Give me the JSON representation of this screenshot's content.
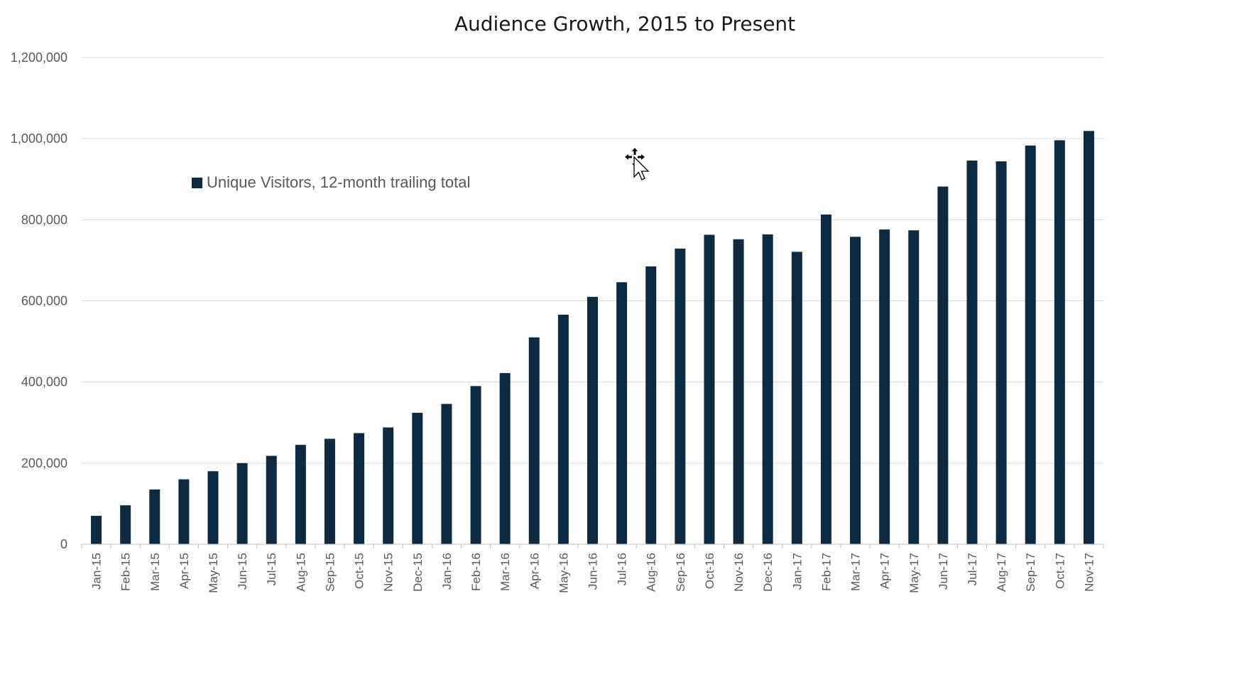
{
  "chart_data": {
    "type": "bar",
    "title": "Audience Growth, 2015 to Present",
    "xlabel": "",
    "ylabel": "",
    "ylim": [
      0,
      1200000
    ],
    "yticks": [
      0,
      200000,
      400000,
      600000,
      800000,
      1000000,
      1200000
    ],
    "ytick_labels": [
      "0",
      "200,000",
      "400,000",
      "600,000",
      "800,000",
      "1,000,000",
      "1,200,000"
    ],
    "grid": true,
    "legend_position": "upper-left",
    "categories": [
      "Jan-15",
      "Feb-15",
      "Mar-15",
      "Apr-15",
      "May-15",
      "Jun-15",
      "Jul-15",
      "Aug-15",
      "Sep-15",
      "Oct-15",
      "Nov-15",
      "Dec-15",
      "Jan-16",
      "Feb-16",
      "Mar-16",
      "Apr-16",
      "May-16",
      "Jun-16",
      "Jul-16",
      "Aug-16",
      "Sep-16",
      "Oct-16",
      "Nov-16",
      "Dec-16",
      "Jan-17",
      "Feb-17",
      "Mar-17",
      "Apr-17",
      "May-17",
      "Jun-17",
      "Jul-17",
      "Aug-17",
      "Sep-17",
      "Oct-17",
      "Nov-17"
    ],
    "series": [
      {
        "name": "Unique Visitors, 12-month trailing total",
        "color": "#0d2a40",
        "values": [
          70000,
          96000,
          135000,
          160000,
          180000,
          200000,
          218000,
          245000,
          260000,
          274000,
          288000,
          324000,
          346000,
          390000,
          422000,
          510000,
          566000,
          610000,
          646000,
          685000,
          729000,
          763000,
          752000,
          764000,
          721000,
          813000,
          758000,
          776000,
          774000,
          882000,
          946000,
          944000,
          983000,
          996000,
          1019000
        ]
      }
    ]
  }
}
